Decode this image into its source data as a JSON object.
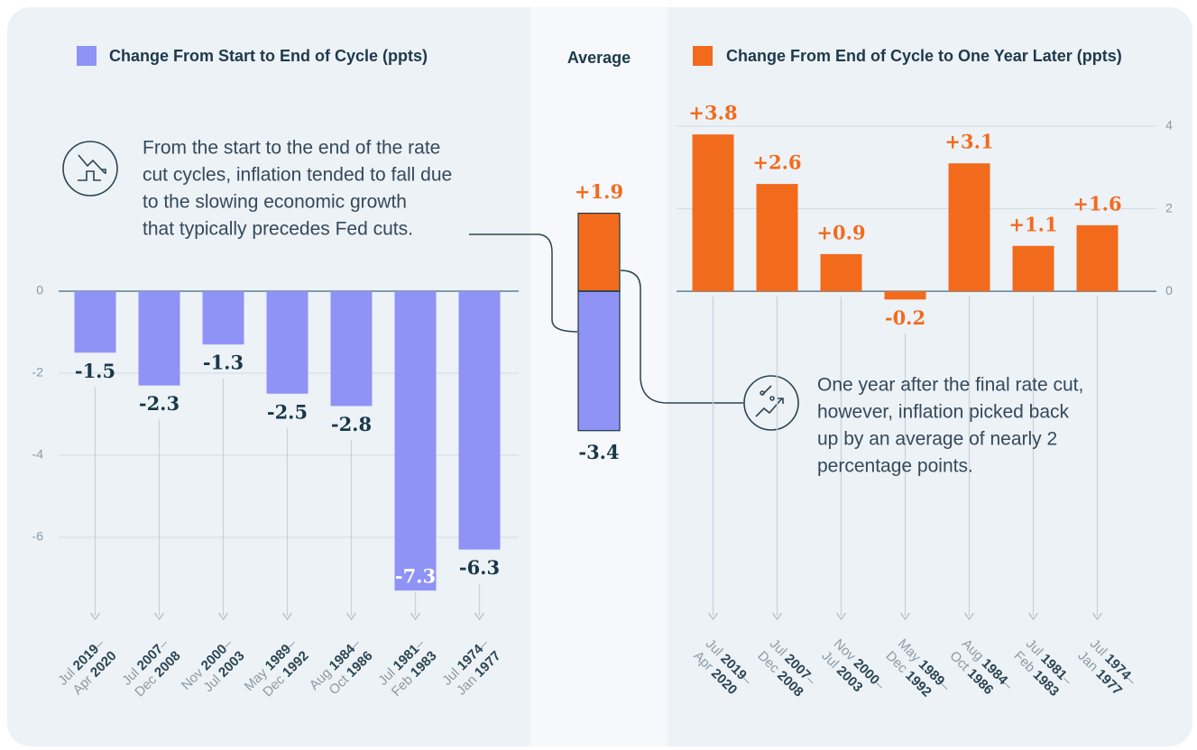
{
  "chart_data": [
    {
      "type": "bar",
      "title": "Change From Start to End of Cycle (ppts)",
      "color": "#8f93f6",
      "categories": [
        "Jul 2019–Apr 2020",
        "Jul 2007–Dec 2008",
        "Nov 2000–Jul 2003",
        "May 1989–Dec 1992",
        "Aug 1984–Oct 1986",
        "Jul 1981–Feb 1983",
        "Jul 1974–Jan 1977"
      ],
      "values": [
        -1.5,
        -2.3,
        -1.3,
        -2.5,
        -2.8,
        -7.3,
        -6.3
      ],
      "ylim": [
        -8,
        0
      ],
      "yticks": [
        0,
        -2,
        -4,
        -6
      ],
      "grid": true,
      "annotation": [
        "From the start to the end of the rate",
        "cut cycles, inflation tended to fall due",
        "to the slowing economic growth",
        "that typically precedes Fed cuts."
      ]
    },
    {
      "type": "stack",
      "title": "Average",
      "series": [
        {
          "color": "#8f93f6",
          "values": [
            -3.4
          ]
        },
        {
          "color": "#f26b1d",
          "values": [
            1.9
          ],
          "value_labels": [
            "+1.9"
          ]
        }
      ]
    },
    {
      "type": "bar",
      "title": "Change From End of Cycle to One Year Later (ppts)",
      "color": "#f26b1d",
      "categories": [
        "Jul 2019–Apr 2020",
        "Jul 2007–Dec 2008",
        "Nov 2000–Jul 2003",
        "May 1989–Dec 1992",
        "Aug 1984–Oct 1986",
        "Jul 1981–Feb 1983",
        "Jul 1974–Jan 1977"
      ],
      "values": [
        3.8,
        2.6,
        0.9,
        -0.2,
        3.1,
        1.1,
        1.6
      ],
      "value_labels": [
        "+3.8",
        "+2.6",
        "+0.9",
        "-0.2",
        "+3.1",
        "+1.1",
        "+1.6"
      ],
      "ylim": [
        -0.5,
        4
      ],
      "yticks": [
        0,
        2,
        4
      ],
      "grid": true,
      "annotation": [
        "One year after the final rate cut,",
        "however, inflation picked back",
        "up by an average of nearly 2",
        "percentage points."
      ]
    }
  ]
}
